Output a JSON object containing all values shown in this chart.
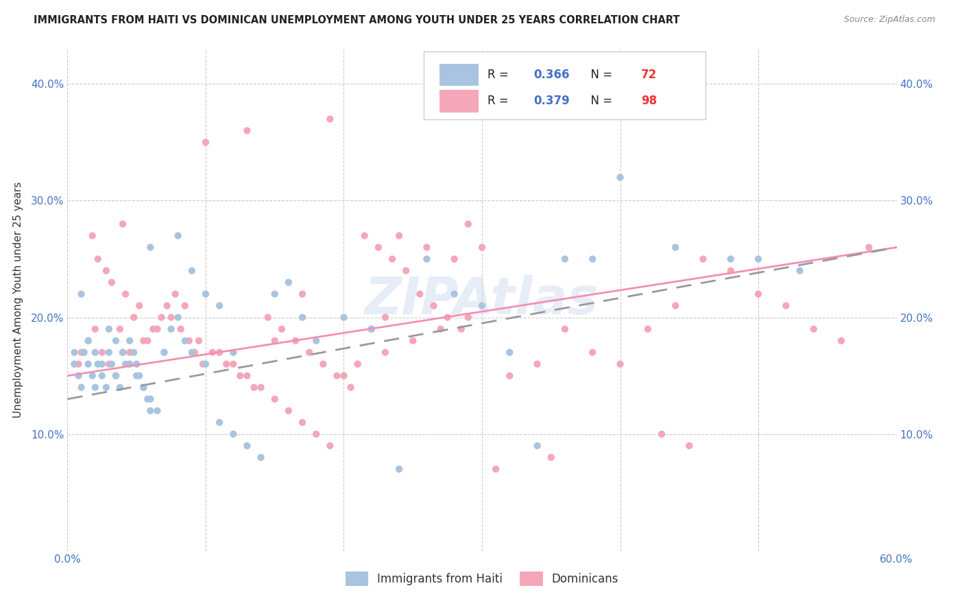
{
  "title": "IMMIGRANTS FROM HAITI VS DOMINICAN UNEMPLOYMENT AMONG YOUTH UNDER 25 YEARS CORRELATION CHART",
  "source": "Source: ZipAtlas.com",
  "ylabel": "Unemployment Among Youth under 25 years",
  "xlim": [
    0.0,
    0.6
  ],
  "ylim": [
    0.0,
    0.43
  ],
  "xticks": [
    0.0,
    0.1,
    0.2,
    0.3,
    0.4,
    0.5,
    0.6
  ],
  "yticks": [
    0.0,
    0.1,
    0.2,
    0.3,
    0.4
  ],
  "xticklabels_left": "0.0%",
  "xticklabels_right": "60.0%",
  "yticklabels": [
    "",
    "10.0%",
    "20.0%",
    "30.0%",
    "40.0%"
  ],
  "haiti_color": "#a8c4e0",
  "dominican_color": "#f4a7b9",
  "haiti_line_color": "#999999",
  "dominican_line_color": "#f48fb1",
  "haiti_R": 0.366,
  "haiti_N": 72,
  "dominican_R": 0.379,
  "dominican_N": 98,
  "background_color": "#ffffff",
  "grid_color": "#cccccc",
  "haiti_scatter_x": [
    0.005,
    0.008,
    0.01,
    0.012,
    0.015,
    0.018,
    0.02,
    0.022,
    0.025,
    0.028,
    0.03,
    0.032,
    0.035,
    0.038,
    0.04,
    0.042,
    0.045,
    0.048,
    0.05,
    0.052,
    0.055,
    0.058,
    0.06,
    0.005,
    0.01,
    0.015,
    0.02,
    0.025,
    0.03,
    0.035,
    0.04,
    0.045,
    0.05,
    0.055,
    0.06,
    0.065,
    0.07,
    0.075,
    0.08,
    0.085,
    0.09,
    0.1,
    0.11,
    0.12,
    0.13,
    0.14,
    0.15,
    0.16,
    0.17,
    0.18,
    0.2,
    0.22,
    0.24,
    0.26,
    0.28,
    0.3,
    0.32,
    0.34,
    0.36,
    0.38,
    0.4,
    0.44,
    0.48,
    0.5,
    0.53,
    0.06,
    0.07,
    0.08,
    0.09,
    0.1,
    0.11,
    0.12
  ],
  "haiti_scatter_y": [
    0.16,
    0.15,
    0.14,
    0.17,
    0.16,
    0.15,
    0.14,
    0.16,
    0.15,
    0.14,
    0.17,
    0.16,
    0.15,
    0.14,
    0.17,
    0.16,
    0.18,
    0.17,
    0.16,
    0.15,
    0.14,
    0.13,
    0.12,
    0.17,
    0.22,
    0.18,
    0.17,
    0.16,
    0.19,
    0.18,
    0.17,
    0.16,
    0.15,
    0.14,
    0.13,
    0.12,
    0.17,
    0.19,
    0.2,
    0.18,
    0.17,
    0.16,
    0.11,
    0.1,
    0.09,
    0.08,
    0.22,
    0.23,
    0.2,
    0.18,
    0.2,
    0.19,
    0.07,
    0.25,
    0.22,
    0.21,
    0.17,
    0.09,
    0.25,
    0.25,
    0.32,
    0.26,
    0.25,
    0.25,
    0.24,
    0.26,
    0.17,
    0.27,
    0.24,
    0.22,
    0.21,
    0.17
  ],
  "dominican_scatter_x": [
    0.005,
    0.01,
    0.015,
    0.02,
    0.025,
    0.03,
    0.035,
    0.04,
    0.008,
    0.012,
    0.018,
    0.022,
    0.028,
    0.032,
    0.038,
    0.042,
    0.048,
    0.052,
    0.058,
    0.062,
    0.068,
    0.072,
    0.078,
    0.082,
    0.088,
    0.092,
    0.098,
    0.045,
    0.055,
    0.065,
    0.075,
    0.085,
    0.095,
    0.105,
    0.115,
    0.125,
    0.135,
    0.145,
    0.155,
    0.165,
    0.175,
    0.185,
    0.195,
    0.205,
    0.215,
    0.225,
    0.235,
    0.245,
    0.255,
    0.265,
    0.275,
    0.285,
    0.1,
    0.11,
    0.12,
    0.13,
    0.14,
    0.15,
    0.16,
    0.17,
    0.18,
    0.19,
    0.2,
    0.21,
    0.22,
    0.23,
    0.24,
    0.26,
    0.28,
    0.3,
    0.32,
    0.34,
    0.36,
    0.38,
    0.4,
    0.42,
    0.44,
    0.46,
    0.48,
    0.5,
    0.52,
    0.54,
    0.56,
    0.58,
    0.45,
    0.43,
    0.35,
    0.31,
    0.29,
    0.27,
    0.25,
    0.23,
    0.21,
    0.19,
    0.17,
    0.15,
    0.13,
    0.29
  ],
  "dominican_scatter_y": [
    0.16,
    0.17,
    0.18,
    0.19,
    0.17,
    0.16,
    0.15,
    0.28,
    0.16,
    0.17,
    0.27,
    0.25,
    0.24,
    0.23,
    0.19,
    0.22,
    0.2,
    0.21,
    0.18,
    0.19,
    0.2,
    0.21,
    0.22,
    0.19,
    0.18,
    0.17,
    0.16,
    0.17,
    0.18,
    0.19,
    0.2,
    0.21,
    0.18,
    0.17,
    0.16,
    0.15,
    0.14,
    0.2,
    0.19,
    0.18,
    0.17,
    0.16,
    0.15,
    0.14,
    0.27,
    0.26,
    0.25,
    0.24,
    0.22,
    0.21,
    0.2,
    0.19,
    0.35,
    0.17,
    0.16,
    0.15,
    0.14,
    0.13,
    0.12,
    0.11,
    0.1,
    0.09,
    0.15,
    0.16,
    0.19,
    0.2,
    0.27,
    0.26,
    0.25,
    0.26,
    0.15,
    0.16,
    0.19,
    0.17,
    0.16,
    0.19,
    0.21,
    0.25,
    0.24,
    0.22,
    0.21,
    0.19,
    0.18,
    0.26,
    0.09,
    0.1,
    0.08,
    0.07,
    0.2,
    0.19,
    0.18,
    0.17,
    0.16,
    0.37,
    0.22,
    0.18,
    0.36,
    0.28
  ],
  "haiti_line_x0": 0.0,
  "haiti_line_y0": 0.13,
  "haiti_line_x1": 0.6,
  "haiti_line_y1": 0.26,
  "dominican_line_x0": 0.0,
  "dominican_line_y0": 0.15,
  "dominican_line_x1": 0.6,
  "dominican_line_y1": 0.26
}
